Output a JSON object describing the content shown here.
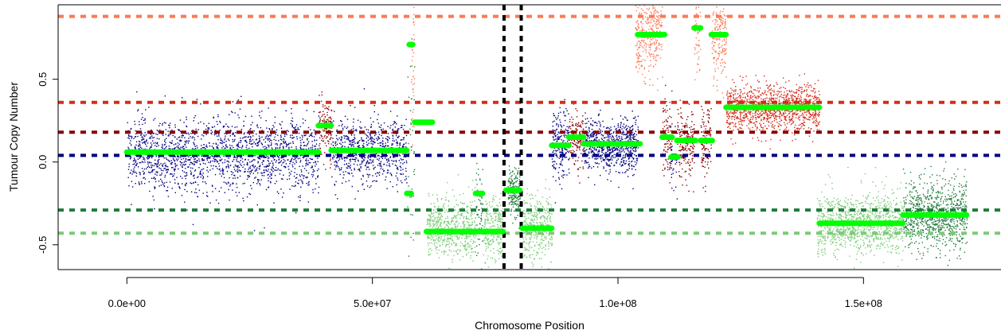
{
  "chart_data": {
    "type": "scatter",
    "xlabel": "Chromosome Position",
    "ylabel": "Tumour Copy Number",
    "xlim": [
      -14000000,
      178000000
    ],
    "ylim": [
      -0.65,
      0.95
    ],
    "x_ticks": [
      {
        "value": 0,
        "label": "0.0e+00"
      },
      {
        "value": 50000000,
        "label": "5.0e+07"
      },
      {
        "value": 100000000,
        "label": "1.0e+08"
      },
      {
        "value": 150000000,
        "label": "1.5e+08"
      }
    ],
    "y_ticks": [
      {
        "value": -0.5,
        "label": "-0.5"
      },
      {
        "value": 0.0,
        "label": "0.0"
      },
      {
        "value": 0.5,
        "label": "0.5"
      }
    ],
    "grid": false,
    "colors": {
      "dark_blue": "#000080",
      "dark_red": "#8b0000",
      "red": "#d62c1a",
      "salmon": "#fa7a55",
      "dark_green": "#1e7d3a",
      "light_green": "#7ccb78",
      "segment": "#00ff00",
      "boundary": "#000000"
    },
    "reference_lines": [
      {
        "y": 0.88,
        "color": "salmon"
      },
      {
        "y": 0.36,
        "color": "red"
      },
      {
        "y": 0.18,
        "color": "dark_red"
      },
      {
        "y": 0.04,
        "color": "dark_blue"
      },
      {
        "y": -0.29,
        "color": "dark_green"
      },
      {
        "y": -0.43,
        "color": "light_green"
      }
    ],
    "boundary_lines": [
      76800000,
      80300000
    ],
    "point_regions": [
      {
        "x": [
          0,
          39000000
        ],
        "center": 0.05,
        "spread": 0.11,
        "color": "dark_blue",
        "count": 1800
      },
      {
        "x": [
          39000000,
          41600000
        ],
        "center": 0.2,
        "spread": 0.09,
        "color": "dark_red",
        "count": 120
      },
      {
        "x": [
          41600000,
          57000000
        ],
        "center": 0.07,
        "spread": 0.1,
        "color": "dark_blue",
        "count": 700
      },
      {
        "x": [
          57000000,
          58500000
        ],
        "center": 0.05,
        "spread": 0.3,
        "color": "dark_green",
        "count": 40
      },
      {
        "x": [
          57800000,
          58500000
        ],
        "center": 0.6,
        "spread": 0.2,
        "color": "salmon",
        "count": 40
      },
      {
        "x": [
          61000000,
          71000000
        ],
        "center": -0.4,
        "spread": 0.09,
        "color": "light_green",
        "count": 600
      },
      {
        "x": [
          71000000,
          72500000
        ],
        "center": -0.3,
        "spread": 0.15,
        "color": "dark_green",
        "count": 60
      },
      {
        "x": [
          72500000,
          76500000
        ],
        "center": -0.4,
        "spread": 0.1,
        "color": "light_green",
        "count": 240
      },
      {
        "x": [
          77500000,
          80000000
        ],
        "center": -0.18,
        "spread": 0.07,
        "color": "dark_green",
        "count": 180
      },
      {
        "x": [
          80500000,
          86500000
        ],
        "center": -0.4,
        "spread": 0.1,
        "color": "light_green",
        "count": 360
      },
      {
        "x": [
          86500000,
          90000000
        ],
        "center": 0.1,
        "spread": 0.1,
        "color": "dark_blue",
        "count": 200
      },
      {
        "x": [
          90000000,
          93000000
        ],
        "center": 0.14,
        "spread": 0.08,
        "color": "dark_red",
        "count": 150
      },
      {
        "x": [
          93000000,
          104000000
        ],
        "center": 0.1,
        "spread": 0.08,
        "color": "dark_blue",
        "count": 700
      },
      {
        "x": [
          103500000,
          109000000
        ],
        "center": 0.78,
        "spread": 0.12,
        "color": "salmon",
        "count": 350
      },
      {
        "x": [
          109000000,
          111000000
        ],
        "center": 0.14,
        "spread": 0.12,
        "color": "dark_red",
        "count": 100
      },
      {
        "x": [
          110500000,
          112000000
        ],
        "center": 0.03,
        "spread": 0.1,
        "color": "dark_blue",
        "count": 30
      },
      {
        "x": [
          112000000,
          115500000
        ],
        "center": 0.12,
        "spread": 0.1,
        "color": "dark_red",
        "count": 180
      },
      {
        "x": [
          115500000,
          116800000
        ],
        "center": 0.8,
        "spread": 0.12,
        "color": "salmon",
        "count": 60
      },
      {
        "x": [
          116800000,
          119000000
        ],
        "center": 0.12,
        "spread": 0.1,
        "color": "dark_red",
        "count": 110
      },
      {
        "x": [
          119000000,
          122000000
        ],
        "center": 0.76,
        "spread": 0.12,
        "color": "salmon",
        "count": 180
      },
      {
        "x": [
          122000000,
          141000000
        ],
        "center": 0.33,
        "spread": 0.07,
        "color": "red",
        "count": 1200
      },
      {
        "x": [
          140500000,
          158000000
        ],
        "center": -0.37,
        "spread": 0.09,
        "color": "light_green",
        "count": 1100
      },
      {
        "x": [
          158000000,
          171000000
        ],
        "center": -0.32,
        "spread": 0.1,
        "color": "dark_green",
        "count": 900
      }
    ],
    "segments": [
      {
        "x": [
          0,
          39000000
        ],
        "y": 0.06
      },
      {
        "x": [
          39000000,
          41600000
        ],
        "y": 0.22
      },
      {
        "x": [
          41600000,
          57000000
        ],
        "y": 0.07
      },
      {
        "x": [
          57000000,
          57900000
        ],
        "y": -0.19
      },
      {
        "x": [
          57500000,
          58200000
        ],
        "y": 0.71
      },
      {
        "x": [
          58600000,
          62200000
        ],
        "y": 0.24
      },
      {
        "x": [
          61000000,
          76600000
        ],
        "y": -0.42
      },
      {
        "x": [
          71000000,
          72400000
        ],
        "y": -0.19
      },
      {
        "x": [
          77200000,
          80000000
        ],
        "y": -0.17
      },
      {
        "x": [
          80500000,
          86500000
        ],
        "y": -0.4
      },
      {
        "x": [
          86500000,
          90000000
        ],
        "y": 0.1
      },
      {
        "x": [
          90000000,
          93000000
        ],
        "y": 0.15
      },
      {
        "x": [
          93000000,
          104500000
        ],
        "y": 0.11
      },
      {
        "x": [
          104000000,
          109500000
        ],
        "y": 0.77
      },
      {
        "x": [
          109000000,
          111000000
        ],
        "y": 0.15
      },
      {
        "x": [
          110800000,
          112200000
        ],
        "y": 0.03
      },
      {
        "x": [
          112000000,
          115800000
        ],
        "y": 0.13
      },
      {
        "x": [
          115500000,
          116800000
        ],
        "y": 0.81
      },
      {
        "x": [
          116800000,
          119200000
        ],
        "y": 0.13
      },
      {
        "x": [
          119000000,
          122000000
        ],
        "y": 0.77
      },
      {
        "x": [
          122000000,
          141000000
        ],
        "y": 0.33
      },
      {
        "x": [
          141000000,
          158000000
        ],
        "y": -0.37
      },
      {
        "x": [
          158000000,
          171000000
        ],
        "y": -0.32
      }
    ]
  }
}
